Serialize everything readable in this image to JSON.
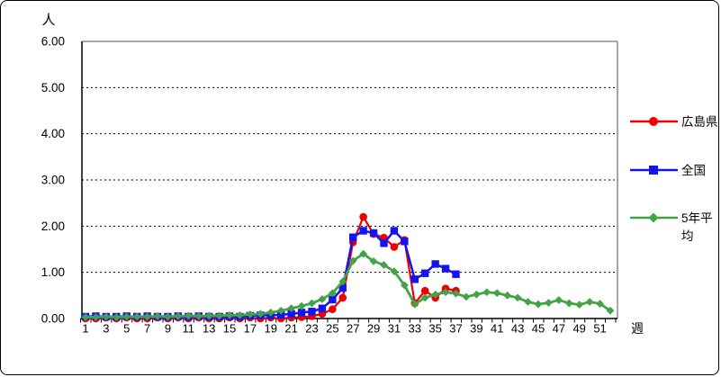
{
  "labels": {
    "y_unit": "人",
    "x_unit": "週"
  },
  "legend": {
    "position": "right",
    "items": [
      {
        "label": "広島県",
        "lines": [
          "広島県"
        ]
      },
      {
        "label": "全国",
        "lines": [
          "全国"
        ]
      },
      {
        "label": "5年平均",
        "lines": [
          "5年平",
          "均"
        ]
      }
    ]
  },
  "chart_data": {
    "type": "line",
    "title": "",
    "xlabel": "週",
    "ylabel": "人",
    "ylim": [
      0,
      6
    ],
    "grid": "horizontal-dashed",
    "legend_position": "right",
    "ytick_labels": [
      "0.00",
      "1.00",
      "2.00",
      "3.00",
      "4.00",
      "5.00",
      "6.00"
    ],
    "x_ticks": [
      1,
      3,
      5,
      7,
      9,
      11,
      13,
      15,
      17,
      19,
      21,
      23,
      25,
      27,
      29,
      31,
      33,
      35,
      37,
      39,
      41,
      43,
      45,
      47,
      49,
      51
    ],
    "weeks": [
      1,
      2,
      3,
      4,
      5,
      6,
      7,
      8,
      9,
      10,
      11,
      12,
      13,
      14,
      15,
      16,
      17,
      18,
      19,
      20,
      21,
      22,
      23,
      24,
      25,
      26,
      27,
      28,
      29,
      30,
      31,
      32,
      33,
      34,
      35,
      36,
      37,
      38,
      39,
      40,
      41,
      42,
      43,
      44,
      45,
      46,
      47,
      48,
      49,
      50,
      51,
      52
    ],
    "series": [
      {
        "name": "広島県",
        "color": "#ee0000",
        "marker": "circle",
        "values": [
          0.0,
          0.0,
          0.02,
          0.0,
          0.02,
          0.0,
          0.0,
          0.02,
          0.0,
          0.02,
          0.0,
          0.02,
          0.0,
          0.0,
          0.02,
          0.0,
          0.02,
          0.0,
          0.02,
          0.0,
          0.02,
          0.03,
          0.05,
          0.1,
          0.2,
          0.45,
          1.65,
          2.2,
          1.83,
          1.75,
          1.55,
          1.7,
          0.33,
          0.6,
          0.45,
          0.65,
          0.6,
          null,
          null,
          null,
          null,
          null,
          null,
          null,
          null,
          null,
          null,
          null,
          null,
          null,
          null,
          null
        ]
      },
      {
        "name": "全国",
        "color": "#1414ee",
        "marker": "square",
        "values": [
          0.04,
          0.05,
          0.04,
          0.04,
          0.05,
          0.04,
          0.05,
          0.04,
          0.04,
          0.05,
          0.04,
          0.05,
          0.04,
          0.04,
          0.05,
          0.04,
          0.06,
          0.07,
          0.07,
          0.08,
          0.1,
          0.13,
          0.15,
          0.22,
          0.41,
          0.66,
          1.76,
          1.9,
          1.85,
          1.63,
          1.9,
          1.67,
          0.85,
          0.98,
          1.18,
          1.08,
          0.96,
          null,
          null,
          null,
          null,
          null,
          null,
          null,
          null,
          null,
          null,
          null,
          null,
          null,
          null,
          null
        ]
      },
      {
        "name": "5年平均",
        "color": "#44a347",
        "marker": "diamond",
        "values": [
          0.03,
          0.03,
          0.04,
          0.03,
          0.04,
          0.04,
          0.04,
          0.05,
          0.04,
          0.05,
          0.06,
          0.05,
          0.06,
          0.06,
          0.07,
          0.07,
          0.09,
          0.1,
          0.13,
          0.17,
          0.22,
          0.27,
          0.33,
          0.42,
          0.55,
          0.8,
          1.25,
          1.4,
          1.24,
          1.16,
          1.02,
          0.72,
          0.31,
          0.45,
          0.52,
          0.57,
          0.54,
          0.47,
          0.52,
          0.57,
          0.55,
          0.5,
          0.45,
          0.36,
          0.31,
          0.34,
          0.4,
          0.33,
          0.3,
          0.36,
          0.32,
          0.17
        ]
      }
    ]
  }
}
